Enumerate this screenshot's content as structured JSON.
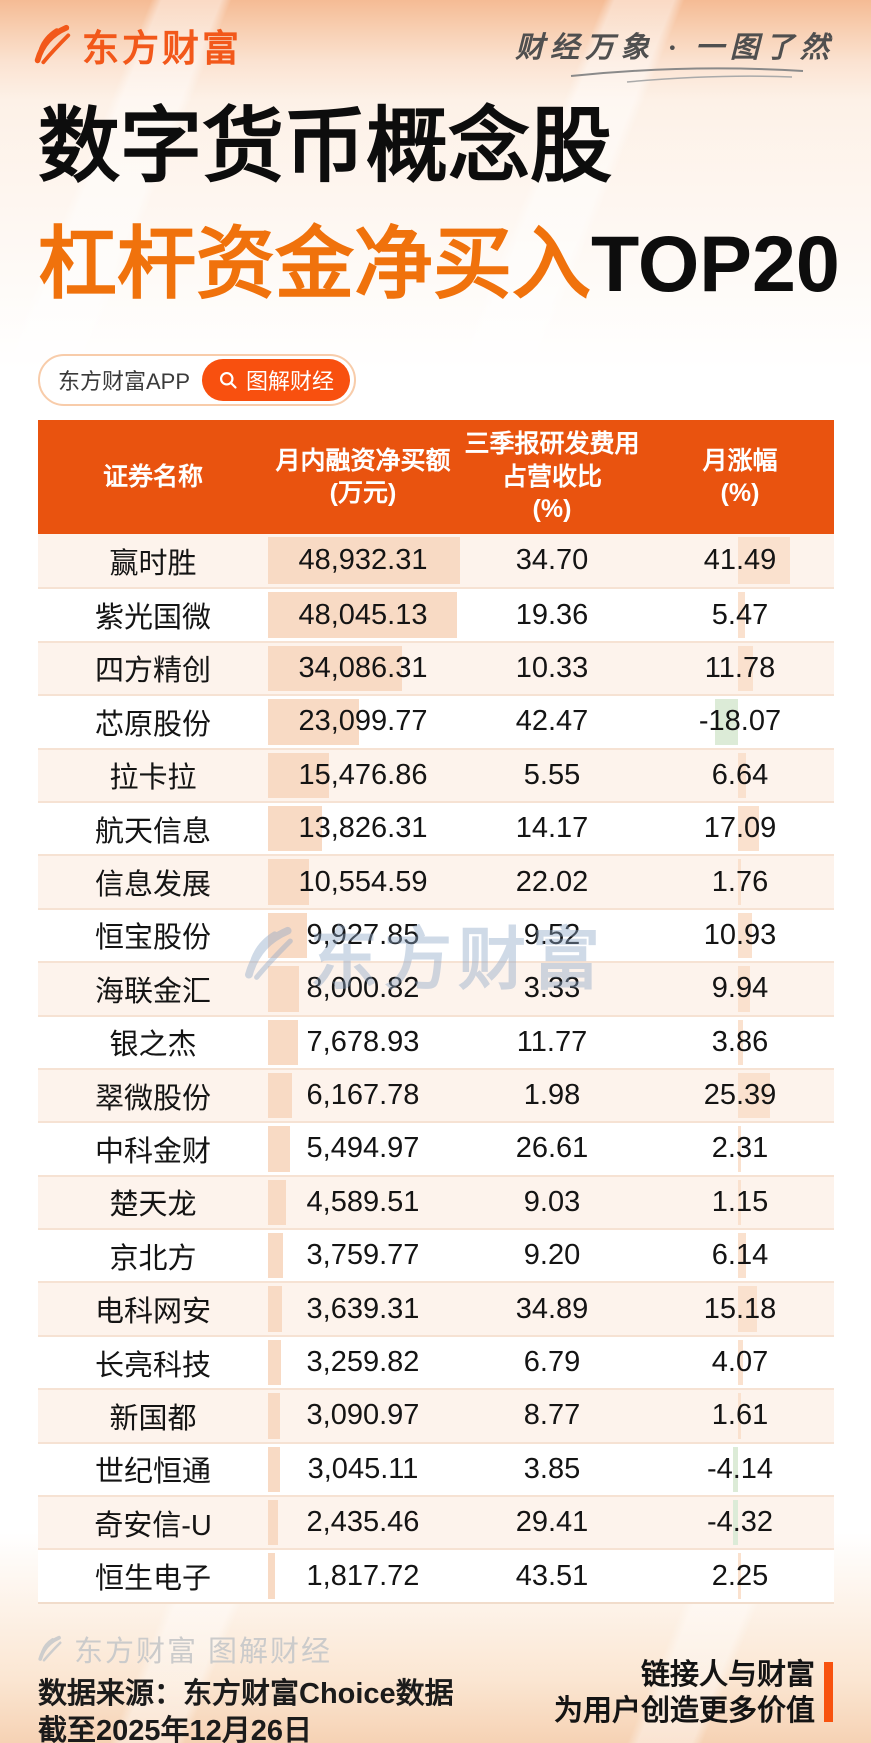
{
  "brand": {
    "name": "东方财富",
    "tagline": "财经万象 · 一图了然"
  },
  "title": {
    "line1": "数字货币概念股",
    "line2_highlight": "杠杆资金净买入",
    "line2_suffix": "TOP20"
  },
  "app_badge": {
    "label": "东方财富APP",
    "button": "图解财经"
  },
  "table": {
    "columns": [
      {
        "label_lines": [
          "证券名称"
        ]
      },
      {
        "label_lines": [
          "月内融资净买额",
          "(万元)"
        ]
      },
      {
        "label_lines": [
          "三季报研发费用",
          "占营收比",
          "(%)"
        ]
      },
      {
        "label_lines": [
          "月涨幅",
          "(%)"
        ]
      }
    ],
    "rows": [
      {
        "name": "赢时胜",
        "net_buy": "48,932.31",
        "rd_ratio": "34.70",
        "monthly_change": "41.49"
      },
      {
        "name": "紫光国微",
        "net_buy": "48,045.13",
        "rd_ratio": "19.36",
        "monthly_change": "5.47"
      },
      {
        "name": "四方精创",
        "net_buy": "34,086.31",
        "rd_ratio": "10.33",
        "monthly_change": "11.78"
      },
      {
        "name": "芯原股份",
        "net_buy": "23,099.77",
        "rd_ratio": "42.47",
        "monthly_change": "-18.07"
      },
      {
        "name": "拉卡拉",
        "net_buy": "15,476.86",
        "rd_ratio": "5.55",
        "monthly_change": "6.64"
      },
      {
        "name": "航天信息",
        "net_buy": "13,826.31",
        "rd_ratio": "14.17",
        "monthly_change": "17.09"
      },
      {
        "name": "信息发展",
        "net_buy": "10,554.59",
        "rd_ratio": "22.02",
        "monthly_change": "1.76"
      },
      {
        "name": "恒宝股份",
        "net_buy": "9,927.85",
        "rd_ratio": "9.52",
        "monthly_change": "10.93"
      },
      {
        "name": "海联金汇",
        "net_buy": "8,000.82",
        "rd_ratio": "3.33",
        "monthly_change": "9.94"
      },
      {
        "name": "银之杰",
        "net_buy": "7,678.93",
        "rd_ratio": "11.77",
        "monthly_change": "3.86"
      },
      {
        "name": "翠微股份",
        "net_buy": "6,167.78",
        "rd_ratio": "1.98",
        "monthly_change": "25.39"
      },
      {
        "name": "中科金财",
        "net_buy": "5,494.97",
        "rd_ratio": "26.61",
        "monthly_change": "2.31"
      },
      {
        "name": "楚天龙",
        "net_buy": "4,589.51",
        "rd_ratio": "9.03",
        "monthly_change": "1.15"
      },
      {
        "name": "京北方",
        "net_buy": "3,759.77",
        "rd_ratio": "9.20",
        "monthly_change": "6.14"
      },
      {
        "name": "电科网安",
        "net_buy": "3,639.31",
        "rd_ratio": "34.89",
        "monthly_change": "15.18"
      },
      {
        "name": "长亮科技",
        "net_buy": "3,259.82",
        "rd_ratio": "6.79",
        "monthly_change": "4.07"
      },
      {
        "name": "新国都",
        "net_buy": "3,090.97",
        "rd_ratio": "8.77",
        "monthly_change": "1.61"
      },
      {
        "name": "世纪恒通",
        "net_buy": "3,045.11",
        "rd_ratio": "3.85",
        "monthly_change": "-4.14"
      },
      {
        "name": "奇安信-U",
        "net_buy": "2,435.46",
        "rd_ratio": "29.41",
        "monthly_change": "-4.32"
      },
      {
        "name": "恒生电子",
        "net_buy": "1,817.72",
        "rd_ratio": "43.51",
        "monthly_change": "2.25"
      }
    ]
  },
  "watermark": {
    "text": "东方财富"
  },
  "footer": {
    "brand_line": "东方财富 图解财经",
    "source_line1": "数据来源：东方财富Choice数据",
    "source_line2": "截至2025年12月26日",
    "slogan_line1": "链接人与财富",
    "slogan_line2": "为用户创造更多价值"
  },
  "colors": {
    "table_header": "#E9530F",
    "logo_orange": "#F2581A",
    "title_orange": "#F0720C",
    "button_orange": "#F8500F",
    "net_bar": "#F8DAC4",
    "change_bar_positive": "#FAE1CE",
    "change_bar_negative": "#DCEBD7",
    "alt_row_bg": "#FDF3EC",
    "watermark": "#8FA8C8"
  },
  "chart_data": {
    "type": "table",
    "title": "数字货币概念股 杠杆资金净买入TOP20",
    "columns": [
      "证券名称",
      "月内融资净买额(万元)",
      "三季报研发费用占营收比(%)",
      "月涨幅(%)"
    ],
    "rows": [
      [
        "赢时胜",
        48932.31,
        34.7,
        41.49
      ],
      [
        "紫光国微",
        48045.13,
        19.36,
        5.47
      ],
      [
        "四方精创",
        34086.31,
        10.33,
        11.78
      ],
      [
        "芯原股份",
        23099.77,
        42.47,
        -18.07
      ],
      [
        "拉卡拉",
        15476.86,
        5.55,
        6.64
      ],
      [
        "航天信息",
        13826.31,
        14.17,
        17.09
      ],
      [
        "信息发展",
        10554.59,
        22.02,
        1.76
      ],
      [
        "恒宝股份",
        9927.85,
        9.52,
        10.93
      ],
      [
        "海联金汇",
        8000.82,
        3.33,
        9.94
      ],
      [
        "银之杰",
        7678.93,
        11.77,
        3.86
      ],
      [
        "翠微股份",
        6167.78,
        1.98,
        25.39
      ],
      [
        "中科金财",
        5494.97,
        26.61,
        2.31
      ],
      [
        "楚天龙",
        4589.51,
        9.03,
        1.15
      ],
      [
        "京北方",
        3759.77,
        9.2,
        6.14
      ],
      [
        "电科网安",
        3639.31,
        34.89,
        15.18
      ],
      [
        "长亮科技",
        3259.82,
        6.79,
        4.07
      ],
      [
        "新国都",
        3090.97,
        8.77,
        1.61
      ],
      [
        "世纪恒通",
        3045.11,
        3.85,
        -4.14
      ],
      [
        "奇安信-U",
        2435.46,
        29.41,
        -4.32
      ],
      [
        "恒生电子",
        1817.72,
        43.51,
        2.25
      ]
    ]
  }
}
